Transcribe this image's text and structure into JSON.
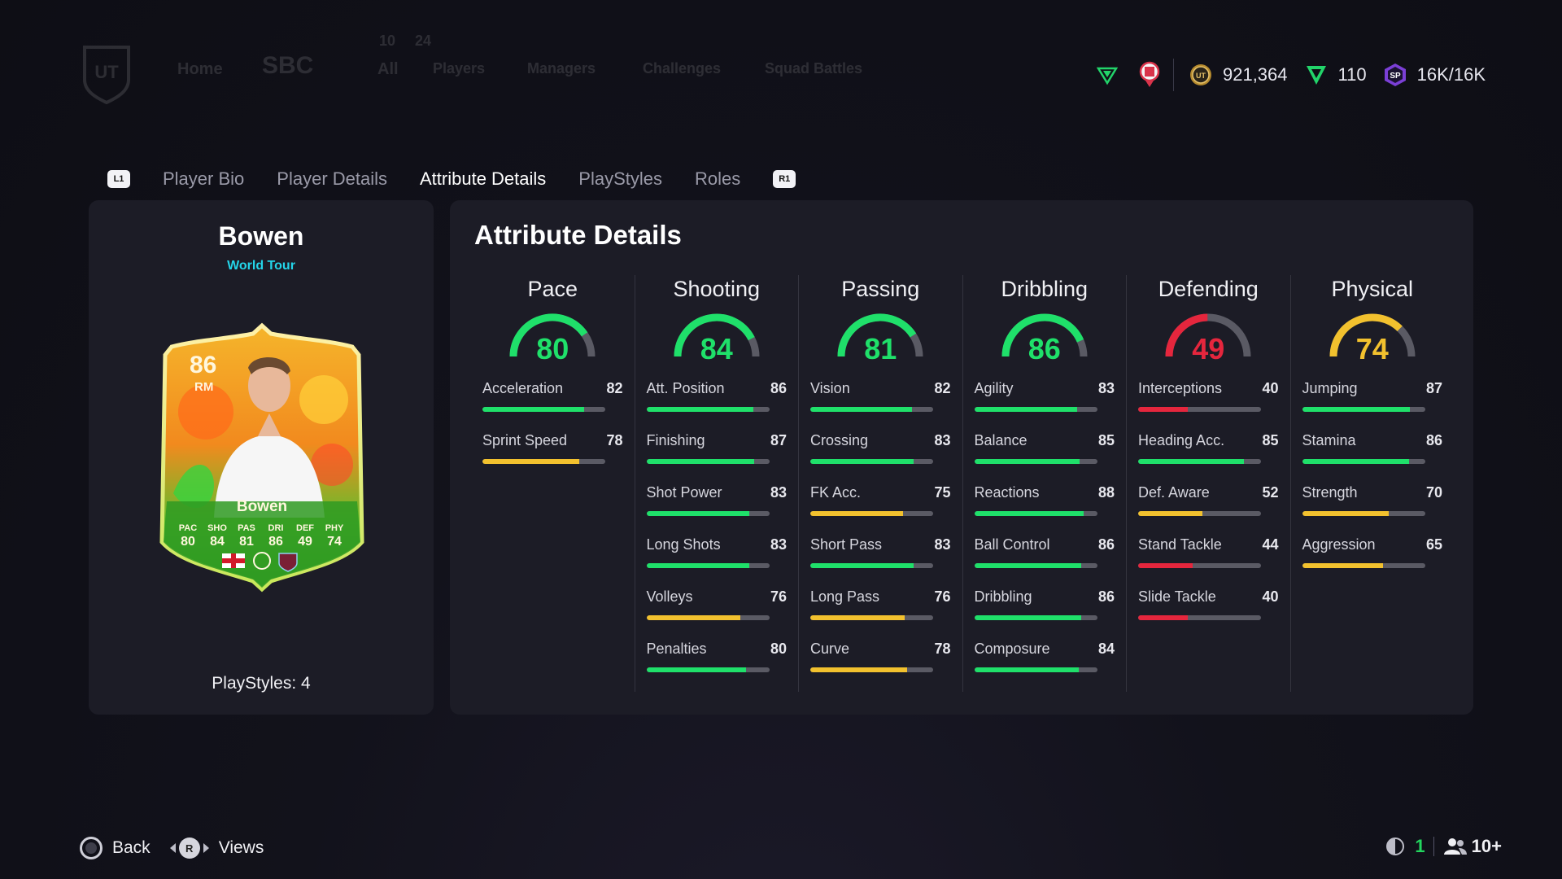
{
  "top_nav": {
    "items": [
      "Home",
      "SBC",
      "All",
      "Players",
      "Managers",
      "Challenges",
      "Squad Battles"
    ],
    "counts": [
      "10",
      "24"
    ]
  },
  "currency": {
    "coins": "921,364",
    "points": "110",
    "sp": "16K/16K",
    "coin_glyph": "UT",
    "sp_glyph": "SP"
  },
  "tabs": {
    "left_hint": "L1",
    "right_hint": "R1",
    "items": [
      "Player Bio",
      "Player Details",
      "Attribute Details",
      "PlayStyles",
      "Roles"
    ],
    "active_index": 2
  },
  "player": {
    "name": "Bowen",
    "card_type": "World Tour",
    "rating": "86",
    "position": "RM",
    "card_stats": [
      {
        "label": "PAC",
        "value": "80"
      },
      {
        "label": "SHO",
        "value": "84"
      },
      {
        "label": "PAS",
        "value": "81"
      },
      {
        "label": "DRI",
        "value": "86"
      },
      {
        "label": "DEF",
        "value": "49"
      },
      {
        "label": "PHY",
        "value": "74"
      }
    ],
    "playstyles": "PlayStyles: 4"
  },
  "colors": {
    "green": "#1fe06a",
    "yellow": "#f2c12e",
    "red": "#e5263d",
    "track": "#5a5a64"
  },
  "attributes": {
    "title": "Attribute Details",
    "categories": [
      {
        "name": "Pace",
        "value": 80,
        "stats": [
          {
            "name": "Acceleration",
            "value": 82
          },
          {
            "name": "Sprint Speed",
            "value": 78
          }
        ]
      },
      {
        "name": "Shooting",
        "value": 84,
        "stats": [
          {
            "name": "Att. Position",
            "value": 86
          },
          {
            "name": "Finishing",
            "value": 87
          },
          {
            "name": "Shot Power",
            "value": 83
          },
          {
            "name": "Long Shots",
            "value": 83
          },
          {
            "name": "Volleys",
            "value": 76
          },
          {
            "name": "Penalties",
            "value": 80
          }
        ]
      },
      {
        "name": "Passing",
        "value": 81,
        "stats": [
          {
            "name": "Vision",
            "value": 82
          },
          {
            "name": "Crossing",
            "value": 83
          },
          {
            "name": "FK Acc.",
            "value": 75
          },
          {
            "name": "Short Pass",
            "value": 83
          },
          {
            "name": "Long Pass",
            "value": 76
          },
          {
            "name": "Curve",
            "value": 78
          }
        ]
      },
      {
        "name": "Dribbling",
        "value": 86,
        "stats": [
          {
            "name": "Agility",
            "value": 83
          },
          {
            "name": "Balance",
            "value": 85
          },
          {
            "name": "Reactions",
            "value": 88
          },
          {
            "name": "Ball Control",
            "value": 86
          },
          {
            "name": "Dribbling",
            "value": 86
          },
          {
            "name": "Composure",
            "value": 84
          }
        ]
      },
      {
        "name": "Defending",
        "value": 49,
        "stats": [
          {
            "name": "Interceptions",
            "value": 40
          },
          {
            "name": "Heading Acc.",
            "value": 85
          },
          {
            "name": "Def. Aware",
            "value": 52
          },
          {
            "name": "Stand Tackle",
            "value": 44
          },
          {
            "name": "Slide Tackle",
            "value": 40
          }
        ]
      },
      {
        "name": "Physical",
        "value": 74,
        "stats": [
          {
            "name": "Jumping",
            "value": 87
          },
          {
            "name": "Stamina",
            "value": 86
          },
          {
            "name": "Strength",
            "value": 70
          },
          {
            "name": "Aggression",
            "value": 65
          }
        ]
      }
    ]
  },
  "footer": {
    "back_label": "Back",
    "views_label": "Views",
    "r_glyph": "R",
    "mic_count": "1",
    "friends_count": "10+"
  }
}
